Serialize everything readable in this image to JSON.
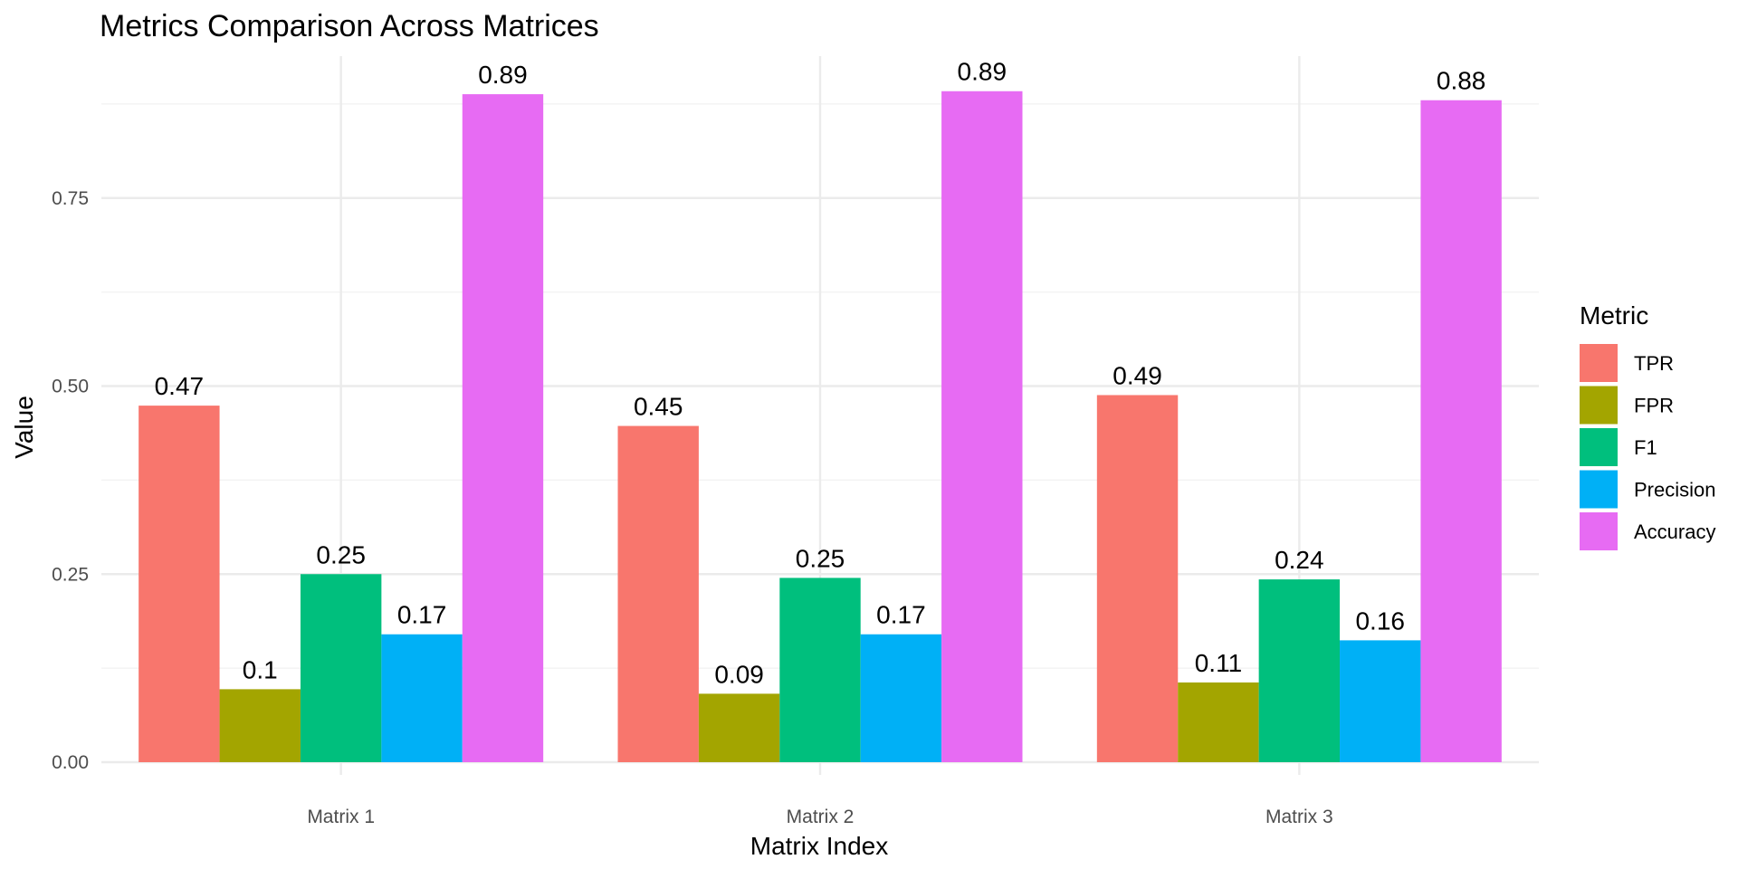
{
  "chart_data": {
    "type": "bar",
    "title": "Metrics Comparison Across Matrices",
    "xlabel": "Matrix Index",
    "ylabel": "Value",
    "categories": [
      "Matrix 1",
      "Matrix 2",
      "Matrix 3"
    ],
    "ylim": [
      0,
      0.9
    ],
    "yticks": [
      0.0,
      0.25,
      0.5,
      0.75
    ],
    "ytick_labels": [
      "0.00",
      "0.25",
      "0.50",
      "0.75"
    ],
    "grid": true,
    "legend": {
      "title": "Metric",
      "position": "right"
    },
    "series": [
      {
        "name": "TPR",
        "color": "#F8766D",
        "values": [
          0.474,
          0.447,
          0.488
        ],
        "labels": [
          "0.47",
          "0.45",
          "0.49"
        ]
      },
      {
        "name": "FPR",
        "color": "#A3A500",
        "values": [
          0.097,
          0.091,
          0.106
        ],
        "labels": [
          "0.1",
          "0.09",
          "0.11"
        ]
      },
      {
        "name": "F1",
        "color": "#00BF7D",
        "values": [
          0.25,
          0.245,
          0.243
        ],
        "labels": [
          "0.25",
          "0.25",
          "0.24"
        ]
      },
      {
        "name": "Precision",
        "color": "#00B0F6",
        "values": [
          0.17,
          0.17,
          0.162
        ],
        "labels": [
          "0.17",
          "0.17",
          "0.16"
        ]
      },
      {
        "name": "Accuracy",
        "color": "#E76BF3",
        "values": [
          0.888,
          0.892,
          0.88
        ],
        "labels": [
          "0.89",
          "0.89",
          "0.88"
        ]
      }
    ]
  }
}
